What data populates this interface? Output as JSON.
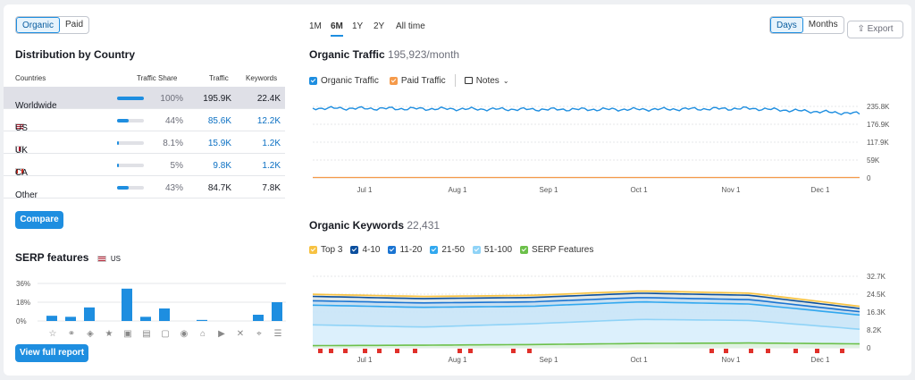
{
  "toggle": {
    "organic": "Organic",
    "paid": "Paid"
  },
  "distribution": {
    "title": "Distribution by Country",
    "headers": {
      "countries": "Countries",
      "share": "Traffic Share",
      "traffic": "Traffic",
      "keywords": "Keywords"
    },
    "rows": [
      {
        "name": "Worldwide",
        "share": "100%",
        "share_value": 1.0,
        "traffic": "195.9K",
        "keywords": "22.4K",
        "flag": ""
      },
      {
        "name": "US",
        "share": "44%",
        "share_value": 0.44,
        "traffic": "85.6K",
        "keywords": "12.2K",
        "flag": "us"
      },
      {
        "name": "UK",
        "share": "8.1%",
        "share_value": 0.081,
        "traffic": "15.9K",
        "keywords": "1.2K",
        "flag": "uk"
      },
      {
        "name": "CA",
        "share": "5%",
        "share_value": 0.05,
        "traffic": "9.8K",
        "keywords": "1.2K",
        "flag": "ca"
      },
      {
        "name": "Other",
        "share": "43%",
        "share_value": 0.43,
        "traffic": "84.7K",
        "keywords": "7.8K",
        "flag": ""
      }
    ],
    "compare_label": "Compare"
  },
  "serp": {
    "title": "SERP features",
    "country": "US",
    "yticks": [
      "36%",
      "18%",
      "0%"
    ],
    "button": "View full report",
    "icons": [
      "star-outline-icon",
      "link-icon",
      "location-diamond-icon",
      "star-icon",
      "image-icon",
      "image-gallery-icon",
      "review-icon",
      "map-pin-icon",
      "graduation-icon",
      "video-icon",
      "x-icon",
      "tag-icon",
      "list-icon"
    ]
  },
  "periods": [
    "1M",
    "6M",
    "1Y",
    "2Y",
    "All time"
  ],
  "active_period": "6M",
  "granularity": {
    "days": "Days",
    "months": "Months"
  },
  "export_label": "Export",
  "traffic": {
    "title": "Organic Traffic",
    "value": "195,923/month",
    "legend": {
      "organic": "Organic Traffic",
      "paid": "Paid Traffic",
      "notes": "Notes"
    },
    "yticks": [
      "235.8K",
      "176.9K",
      "117.9K",
      "59K",
      "0"
    ],
    "xticks": [
      "Jul 1",
      "Aug 1",
      "Sep 1",
      "Oct 1",
      "Nov 1",
      "Dec 1"
    ]
  },
  "keywords": {
    "title": "Organic Keywords",
    "value": "22,431",
    "legend": [
      "Top 3",
      "4-10",
      "11-20",
      "21-50",
      "51-100",
      "SERP Features"
    ],
    "yticks": [
      "32.7K",
      "24.5K",
      "16.3K",
      "8.2K",
      "0"
    ],
    "xticks": [
      "Jul 1",
      "Aug 1",
      "Sep 1",
      "Oct 1",
      "Nov 1",
      "Dec 1"
    ]
  },
  "colors": {
    "accent": "#1e8ee0",
    "organic": "#1e8ee0",
    "paid": "#f59a4a",
    "top3": "#f7c242",
    "k4_10": "#0b4f9e",
    "k11_20": "#1a74d2",
    "k21_50": "#31a8ef",
    "k51_100": "#8fd3f7",
    "serp": "#6cc04a"
  },
  "chart_data": [
    {
      "type": "line",
      "title": "Organic Traffic",
      "x": [
        "Jul 1",
        "Aug 1",
        "Sep 1",
        "Oct 1",
        "Nov 1",
        "Dec 1"
      ],
      "ylim": [
        0,
        235800
      ],
      "series": [
        {
          "name": "Organic Traffic",
          "values": [
            230000,
            228000,
            226000,
            226000,
            229000,
            212000
          ]
        },
        {
          "name": "Paid Traffic",
          "values": [
            0,
            0,
            0,
            0,
            0,
            0
          ]
        }
      ]
    },
    {
      "type": "area",
      "title": "Organic Keywords",
      "x": [
        "Jul 1",
        "Aug 1",
        "Sep 1",
        "Oct 1",
        "Nov 1",
        "Dec 1"
      ],
      "ylim": [
        0,
        32700
      ],
      "series": [
        {
          "name": "Top 3",
          "values": [
            24500,
            23500,
            24000,
            26000,
            25000,
            19000
          ]
        },
        {
          "name": "4-10",
          "values": [
            23500,
            22500,
            23000,
            25000,
            24000,
            18000
          ]
        },
        {
          "name": "11-20",
          "values": [
            21500,
            20500,
            21000,
            23000,
            22000,
            16500
          ]
        },
        {
          "name": "21-50",
          "values": [
            19500,
            18500,
            19000,
            21000,
            20000,
            15000
          ]
        },
        {
          "name": "51-100",
          "values": [
            10500,
            9500,
            11000,
            13000,
            12500,
            8500
          ]
        },
        {
          "name": "SERP Features",
          "values": [
            1000,
            1200,
            1500,
            2000,
            2200,
            1800
          ]
        }
      ]
    },
    {
      "type": "bar",
      "title": "SERP features",
      "categories": [
        "star-outline",
        "link",
        "location-diamond",
        "star",
        "image",
        "image-gallery",
        "review",
        "map-pin",
        "graduation",
        "video",
        "x",
        "tag",
        "list"
      ],
      "values": [
        5,
        4,
        13,
        0,
        31,
        4,
        12,
        0,
        1,
        0,
        0,
        6,
        18
      ],
      "ylim": [
        0,
        36
      ]
    }
  ]
}
